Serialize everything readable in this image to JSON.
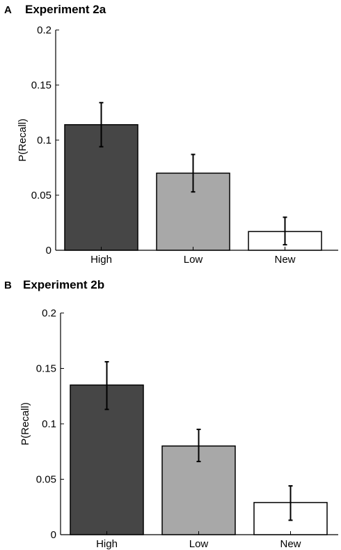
{
  "chart_data": [
    {
      "type": "bar",
      "panel_letter": "A",
      "title": "Experiment 2a",
      "ylabel": "P(Recall)",
      "xlabel": "",
      "ylim": [
        0,
        0.2
      ],
      "yticks": [
        "0",
        "0.05",
        "0.1",
        "0.15",
        "0.2"
      ],
      "categories": [
        "High",
        "Low",
        "New"
      ],
      "values": [
        0.114,
        0.07,
        0.017
      ],
      "error_low": [
        0.094,
        0.053,
        0.005
      ],
      "error_high": [
        0.134,
        0.087,
        0.03
      ],
      "colors": [
        "#464646",
        "#a8a8a8",
        "#ffffff"
      ],
      "grid": false
    },
    {
      "type": "bar",
      "panel_letter": "B",
      "title": "Experiment 2b",
      "ylabel": "P(Recall)",
      "xlabel": "",
      "ylim": [
        0,
        0.2
      ],
      "yticks": [
        "0",
        "0.05",
        "0.1",
        "0.15",
        "0.2"
      ],
      "categories": [
        "High",
        "Low",
        "New"
      ],
      "values": [
        0.135,
        0.08,
        0.029
      ],
      "error_low": [
        0.113,
        0.066,
        0.013
      ],
      "error_high": [
        0.156,
        0.095,
        0.044
      ],
      "colors": [
        "#464646",
        "#a8a8a8",
        "#ffffff"
      ],
      "grid": false
    }
  ]
}
